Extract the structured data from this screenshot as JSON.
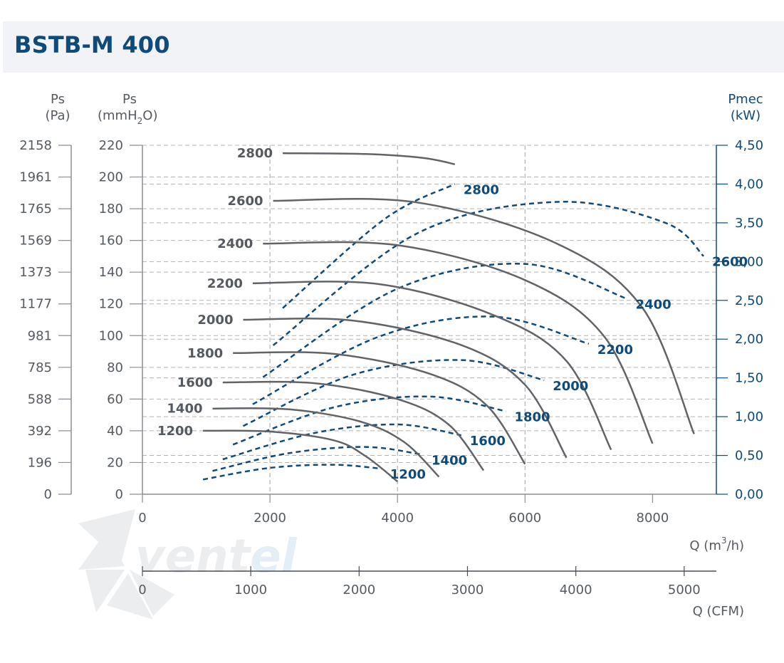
{
  "title": "BSTB-M 400",
  "logo": {
    "text_main": "vent",
    "text_accent": "el"
  },
  "colors": {
    "pressure": "#606468",
    "power": "#0e4a7a",
    "grid": "#b3b3b3",
    "title_bg": "#f1f3f6"
  },
  "chart_data": {
    "type": "line",
    "axes": {
      "left_pa": {
        "label_top": "Ps",
        "label_bottom": "(Pa)",
        "ticks": [
          "2158",
          "1961",
          "1765",
          "1569",
          "1373",
          "1177",
          "981",
          "785",
          "588",
          "392",
          "196",
          "0"
        ]
      },
      "left_mm": {
        "label_top": "Ps",
        "label_unit": "(mmH",
        "label_sub": "2",
        "label_end": "O)",
        "range": [
          0,
          220
        ],
        "ticks": [
          "220",
          "200",
          "180",
          "160",
          "140",
          "120",
          "100",
          "80",
          "60",
          "40",
          "20",
          "0"
        ]
      },
      "right_kw": {
        "label_top": "Pmec",
        "label_bottom": "(kW)",
        "range": [
          0,
          4.5
        ],
        "ticks": [
          "4,50",
          "4,00",
          "3,50",
          "3,00",
          "2,50",
          "2,00",
          "1,50",
          "1,00",
          "0,50",
          "0,00"
        ]
      },
      "x_m3h": {
        "label_pre": "Q (m",
        "label_sup": "3",
        "label_post": "/h)",
        "range": [
          0,
          9000
        ],
        "ticks": [
          "0",
          "2000",
          "4000",
          "6000",
          "8000"
        ]
      },
      "x_cfm": {
        "label": "Q (CFM)",
        "range": [
          0,
          5297
        ],
        "ticks": [
          "0",
          "1000",
          "2000",
          "3000",
          "4000",
          "5000"
        ]
      }
    },
    "pressure_series": [
      {
        "name": "1200",
        "x": [
          950,
          2000,
          3000,
          3500,
          4000
        ],
        "y": [
          40,
          39.5,
          34,
          24,
          8
        ]
      },
      {
        "name": "1400",
        "x": [
          1100,
          2300,
          3400,
          4100,
          4650
        ],
        "y": [
          54,
          53.5,
          46,
          33,
          11
        ]
      },
      {
        "name": "1600",
        "x": [
          1260,
          2700,
          4000,
          4800,
          5350
        ],
        "y": [
          70.5,
          70,
          60,
          44,
          15
        ]
      },
      {
        "name": "1800",
        "x": [
          1420,
          3000,
          4500,
          5400,
          6000
        ],
        "y": [
          89,
          88.5,
          76,
          56,
          19
        ]
      },
      {
        "name": "2000",
        "x": [
          1580,
          3300,
          5000,
          6000,
          6650
        ],
        "y": [
          110,
          109.5,
          94,
          69,
          23
        ]
      },
      {
        "name": "2200",
        "x": [
          1730,
          3700,
          5500,
          6650,
          7350
        ],
        "y": [
          133,
          132.5,
          113,
          84,
          28
        ]
      },
      {
        "name": "2400",
        "x": [
          1890,
          4000,
          6000,
          7250,
          8000
        ],
        "y": [
          158,
          157,
          135,
          99,
          32
        ]
      },
      {
        "name": "2600",
        "x": [
          2050,
          4300,
          6500,
          7850,
          8650
        ],
        "y": [
          185,
          184,
          158,
          117,
          38
        ]
      },
      {
        "name": "2800",
        "x": [
          2200,
          3500,
          4400,
          4900
        ],
        "y": [
          215,
          214.5,
          212,
          208
        ]
      }
    ],
    "power_series": [
      {
        "name": "1200",
        "x": [
          950,
          2000,
          3000,
          3750
        ],
        "y": [
          0.19,
          0.34,
          0.38,
          0.33
        ]
      },
      {
        "name": "1400",
        "x": [
          1100,
          2300,
          3500,
          4400
        ],
        "y": [
          0.3,
          0.53,
          0.61,
          0.51
        ]
      },
      {
        "name": "1600",
        "x": [
          1260,
          2700,
          4000,
          5000
        ],
        "y": [
          0.45,
          0.79,
          0.9,
          0.76
        ]
      },
      {
        "name": "1800",
        "x": [
          1420,
          3000,
          4500,
          5700
        ],
        "y": [
          0.64,
          1.12,
          1.26,
          1.07
        ]
      },
      {
        "name": "2000",
        "x": [
          1580,
          3300,
          5000,
          6300
        ],
        "y": [
          0.88,
          1.54,
          1.73,
          1.47
        ]
      },
      {
        "name": "2200",
        "x": [
          1730,
          3700,
          5500,
          7000
        ],
        "y": [
          1.16,
          2.03,
          2.29,
          1.94
        ]
      },
      {
        "name": "2400",
        "x": [
          1890,
          4000,
          6000,
          7600
        ],
        "y": [
          1.51,
          2.65,
          2.97,
          2.52
        ]
      },
      {
        "name": "2600",
        "x": [
          2050,
          4300,
          6500,
          8200,
          8800
        ],
        "y": [
          1.92,
          3.36,
          3.77,
          3.5,
          3.07
        ]
      },
      {
        "name": "2800",
        "x": [
          2200,
          3800,
          4900
        ],
        "y": [
          2.4,
          3.55,
          4.0
        ]
      }
    ]
  }
}
